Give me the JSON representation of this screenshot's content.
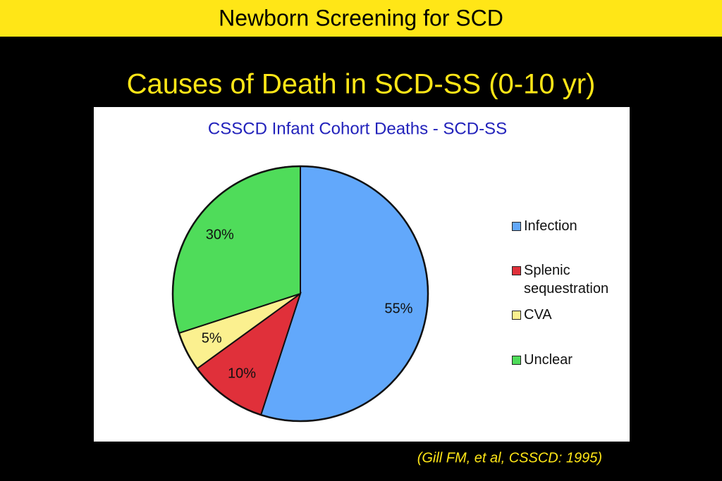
{
  "header": {
    "title": "Newborn Screening for SCD"
  },
  "slide": {
    "title": "Causes of Death in SCD-SS (0-10 yr)",
    "citation": "(Gill FM, et al, CSSCD: 1995)"
  },
  "chart_data": {
    "type": "pie",
    "title": "CSSCD Infant Cohort Deaths - SCD-SS",
    "categories": [
      "Infection",
      "Splenic sequestration",
      "CVA",
      "Unclear"
    ],
    "values": [
      55,
      10,
      5,
      30
    ],
    "value_labels": [
      "55%",
      "10%",
      "5%",
      "30%"
    ],
    "colors": [
      "#62a8fb",
      "#e0303a",
      "#fbf08f",
      "#4fdc5a"
    ],
    "legend": "right"
  }
}
